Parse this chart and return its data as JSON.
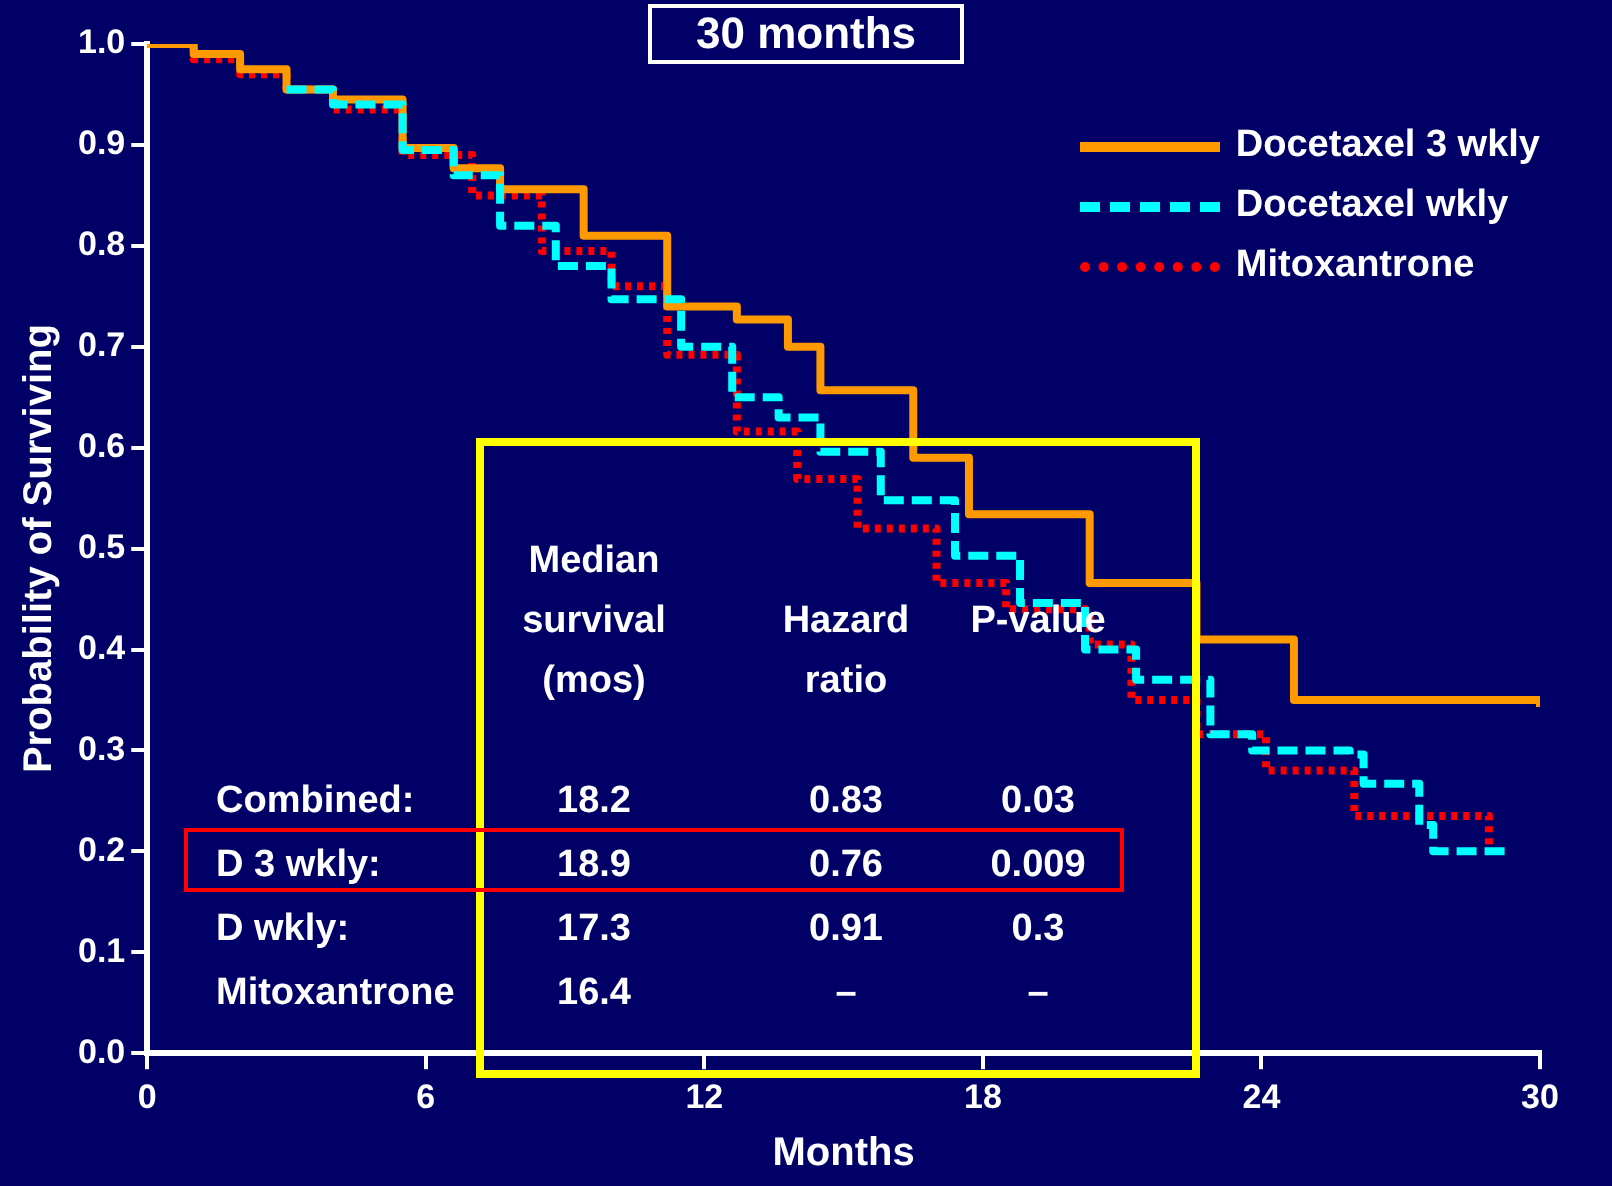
{
  "chart_data": {
    "type": "step",
    "title": "30 months",
    "xlabel": "Months",
    "ylabel": "Probability of Surviving",
    "xlim": [
      0,
      30
    ],
    "xticks": [
      0,
      6,
      12,
      18,
      24,
      30
    ],
    "ylim": [
      0,
      1
    ],
    "yticks": [
      {
        "value": 0,
        "label": "0.0"
      },
      0.1,
      0.2,
      0.3,
      0.4,
      0.5,
      0.6,
      0.7,
      0.8,
      0.9,
      {
        "value": 1,
        "label": "1.0"
      }
    ],
    "grid": false,
    "legend": "top right",
    "series": [
      {
        "name": "Docetaxel 3 wkly",
        "color": "#ff9900",
        "line_style": "solid",
        "x": [
          0,
          1,
          2,
          3,
          4,
          5.5,
          6.6,
          7.6,
          9.4,
          11.2,
          12.7,
          13.8,
          14.5,
          16.5,
          17.7,
          20.3,
          22.6,
          24.7,
          30
        ],
        "values": [
          1,
          0.99,
          0.975,
          0.955,
          0.945,
          0.897,
          0.877,
          0.856,
          0.81,
          0.74,
          0.727,
          0.7,
          0.657,
          0.59,
          0.534,
          0.466,
          0.41,
          0.35,
          0.343
        ]
      },
      {
        "name": "Docetaxel wkly",
        "color": "#00ffff",
        "line_style": "dashed",
        "x": [
          3,
          4,
          5.5,
          6.6,
          7.6,
          8.8,
          10,
          11.5,
          12.6,
          13.6,
          14.5,
          15.8,
          17.4,
          18.8,
          20.2,
          21.3,
          22.9,
          23.8,
          25,
          25.9,
          26.2,
          27.1,
          27.4,
          27.7,
          29.4
        ],
        "values": [
          0.955,
          0.94,
          0.895,
          0.87,
          0.82,
          0.78,
          0.747,
          0.7,
          0.65,
          0.63,
          0.596,
          0.548,
          0.493,
          0.446,
          0.4,
          0.37,
          0.316,
          0.3,
          0.3,
          0.296,
          0.267,
          0.267,
          0.226,
          0.2,
          0.2
        ]
      },
      {
        "name": "Mitoxantrone",
        "color": "#ff0000",
        "line_style": "dotted",
        "x": [
          0,
          1,
          2,
          3,
          4,
          5.5,
          7,
          8.5,
          10,
          11.2,
          12.7,
          14,
          15.3,
          17,
          18.5,
          20.3,
          21.2,
          22.6,
          24.1,
          26,
          28.8,
          28.9
        ],
        "values": [
          1,
          0.985,
          0.97,
          0.955,
          0.935,
          0.89,
          0.85,
          0.795,
          0.76,
          0.692,
          0.616,
          0.569,
          0.52,
          0.466,
          0.44,
          0.405,
          0.35,
          0.316,
          0.28,
          0.235,
          0.235,
          0.2
        ]
      }
    ],
    "annotations": [
      "Median survival (mos)",
      "Hazard ratio",
      "P-value",
      "Combined:",
      "18.2",
      "0.83",
      "0.03",
      "D  3 wkly:",
      "18.9",
      "0.76",
      "0.009",
      "D  wkly:",
      "17.3",
      "0.91",
      "0.3",
      "Mitoxantrone",
      "16.4",
      "–",
      "–"
    ]
  }
}
